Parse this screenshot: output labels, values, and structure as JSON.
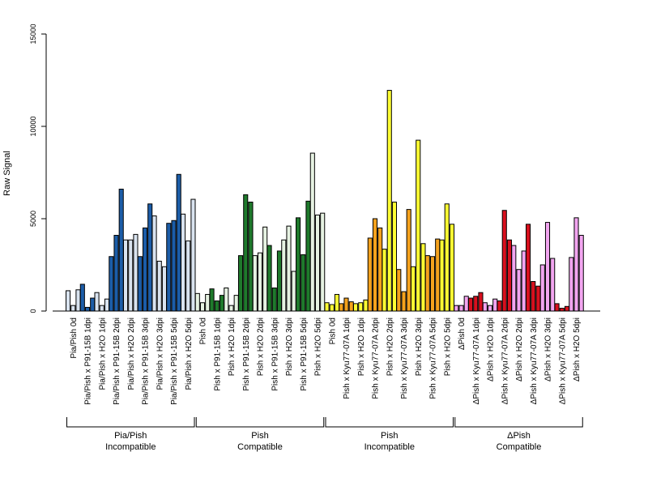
{
  "chart_data": {
    "type": "bar",
    "ylabel": "Raw Signal",
    "ylim": [
      0,
      15000
    ],
    "yticks": [
      0,
      5000,
      10000,
      15000
    ],
    "grid": false,
    "replicates_per_category": 3,
    "categories": [
      "Pia/Pish 0d",
      "Pia/Pish x P91-15B 1dpi",
      "Pia/Pish x H2O 1dpi",
      "Pia/Pish x P91-15B 2dpi",
      "Pia/Pish x H2O 2dpi",
      "Pia/Pish x P91-15B 3dpi",
      "Pia/Pish x H2O 3dpi",
      "Pia/Pish x P91-15B 5dpi",
      "Pia/Pish x H2O 5dpi",
      "Pish 0d",
      "Pish x P91-15B 1dpi",
      "Pish x H2O 1dpi",
      "Pish x P91-15B 2dpi",
      "Pish x H2O 2dpi",
      "Pish x P91-15B 3dpi",
      "Pish x H2O 3dpi",
      "Pish x P91-15B 5dpi",
      "Pish x H2O 5dpi",
      "Pish 0d",
      "Pish x Kyu77-07A 1dpi",
      "Pish x H2O 1dpi",
      "Pish x Kyu77-07A 2dpi",
      "Pish x H2O 2dpi",
      "Pish x Kyu77-07A 3dpi",
      "Pish x H2O 3dpi",
      "Pish x Kyu77-07A 5dpi",
      "Pish x H2O 5dpi",
      "ΔPish 0d",
      "ΔPish x Kyu77-07A 1dpi",
      "ΔPish x H2O 1dpi",
      "ΔPish x Kyu77-07A 2dpi",
      "ΔPish x H2O 2dpi",
      "ΔPish x Kyu77-07A 3dpi",
      "ΔPish x H2O 3dpi",
      "ΔPish x Kyu77-07A 5dpi",
      "ΔPish x H2O 5dpi"
    ],
    "values": [
      [
        1100,
        300,
        1150
      ],
      [
        1450,
        200,
        700
      ],
      [
        1000,
        300,
        650
      ],
      [
        2950,
        4100,
        6600
      ],
      [
        3850,
        3850,
        4150
      ],
      [
        2950,
        4500,
        5800
      ],
      [
        5150,
        2700,
        2400
      ],
      [
        4750,
        4900,
        7400
      ],
      [
        5250,
        3800,
        6050
      ],
      [
        950,
        450,
        900
      ],
      [
        1200,
        550,
        850
      ],
      [
        1250,
        300,
        850
      ],
      [
        3000,
        6300,
        5900
      ],
      [
        3000,
        3150,
        4550
      ],
      [
        3550,
        1250,
        3250
      ],
      [
        3850,
        4600,
        2150
      ],
      [
        5050,
        3050,
        5950
      ],
      [
        8550,
        5200,
        5300
      ],
      [
        450,
        350,
        900
      ],
      [
        400,
        700,
        500
      ],
      [
        400,
        450,
        600
      ],
      [
        3950,
        5000,
        4500
      ],
      [
        3350,
        11950,
        5900
      ],
      [
        2250,
        1050,
        5500
      ],
      [
        2400,
        9250,
        3650
      ],
      [
        3000,
        2950,
        3900
      ],
      [
        3850,
        5800,
        4700
      ],
      [
        300,
        300,
        800
      ],
      [
        700,
        800,
        1000
      ],
      [
        450,
        300,
        650
      ],
      [
        550,
        5450,
        3850
      ],
      [
        3550,
        2250,
        3250
      ],
      [
        4700,
        1600,
        1350
      ],
      [
        2500,
        4800,
        2850
      ],
      [
        400,
        150,
        250
      ],
      [
        2900,
        5050,
        4100
      ]
    ],
    "colors": [
      "#d9e3ef",
      "#1c5da8",
      "#d9e3ef",
      "#1c5da8",
      "#d9e3ef",
      "#1c5da8",
      "#d9e3ef",
      "#1c5da8",
      "#d9e3ef",
      "#e6f2e2",
      "#1f7a2c",
      "#e6f2e2",
      "#1f7a2c",
      "#e6f2e2",
      "#1f7a2c",
      "#e6f2e2",
      "#1f7a2c",
      "#e6f2e2",
      "#ffff33",
      "#f5a21d",
      "#ffff33",
      "#f5a21d",
      "#ffff33",
      "#f5a21d",
      "#ffff33",
      "#f5a21d",
      "#ffff33",
      "#f2a5f0",
      "#d8101e",
      "#f2a5f0",
      "#d8101e",
      "#f2a5f0",
      "#d8101e",
      "#f2a5f0",
      "#d8101e",
      "#f2a5f0"
    ],
    "groups": [
      {
        "line1": "Pia/Pish",
        "line2": "Incompatible",
        "start": 0,
        "end": 8
      },
      {
        "line1": "Pish",
        "line2": "Compatible",
        "start": 9,
        "end": 17
      },
      {
        "line1": "Pish",
        "line2": "Incompatible",
        "start": 18,
        "end": 26
      },
      {
        "line1": "ΔPish",
        "line2": "Compatible",
        "start": 27,
        "end": 35
      }
    ]
  }
}
